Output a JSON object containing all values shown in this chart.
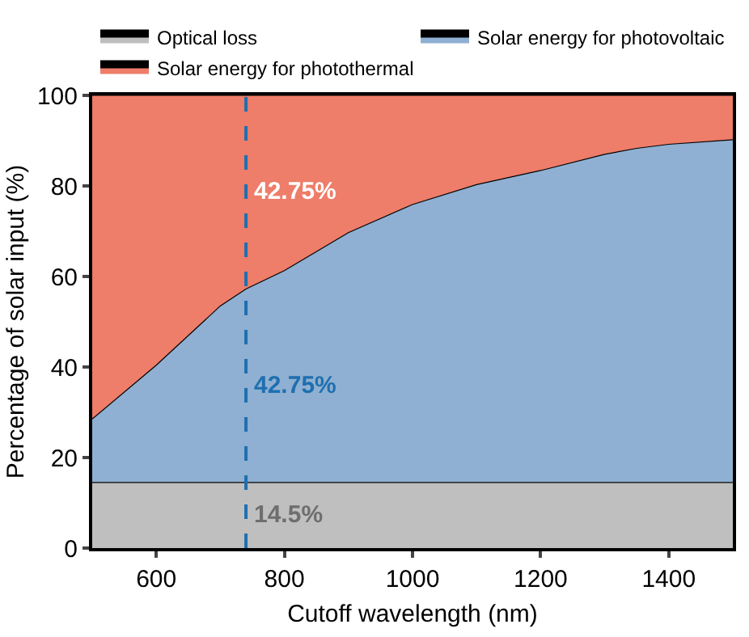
{
  "chart_data": {
    "type": "area",
    "stacked": true,
    "xlabel": "Cutoff wavelength (nm)",
    "ylabel": "Percentage of solar input (%)",
    "x": [
      500,
      600,
      700,
      740,
      800,
      900,
      1000,
      1100,
      1200,
      1300,
      1350,
      1400,
      1500
    ],
    "series": [
      {
        "name": "Optical loss",
        "color": "#bfbfbf",
        "values": [
          14.5,
          14.5,
          14.5,
          14.5,
          14.5,
          14.5,
          14.5,
          14.5,
          14.5,
          14.5,
          14.5,
          14.5,
          14.5
        ]
      },
      {
        "name": "Solar energy for photovoltaic",
        "color": "#8fb0d2",
        "values": [
          14,
          25.9,
          39,
          42.75,
          46.8,
          55.2,
          61.4,
          65.8,
          68.9,
          72.5,
          73.8,
          74.7,
          75.7
        ]
      },
      {
        "name": "Solar energy for photothermal",
        "color": "#ee7d69",
        "values": [
          71.5,
          59.6,
          46.5,
          42.75,
          38.7,
          30.3,
          24.1,
          19.7,
          16.6,
          13,
          11.7,
          10.8,
          9.8
        ]
      }
    ],
    "xlim": [
      500,
      1500
    ],
    "ylim": [
      0,
      100
    ],
    "xticks": [
      600,
      800,
      1000,
      1200,
      1400
    ],
    "yticks": [
      0,
      20,
      40,
      60,
      80,
      100
    ],
    "ref_lines": [
      {
        "axis": "x",
        "value": 740,
        "color": "#1f6fb0",
        "line_style": "dashed"
      }
    ],
    "annotations": [
      "42.75%",
      "42.75%",
      "14.5%"
    ],
    "legend": "top"
  }
}
